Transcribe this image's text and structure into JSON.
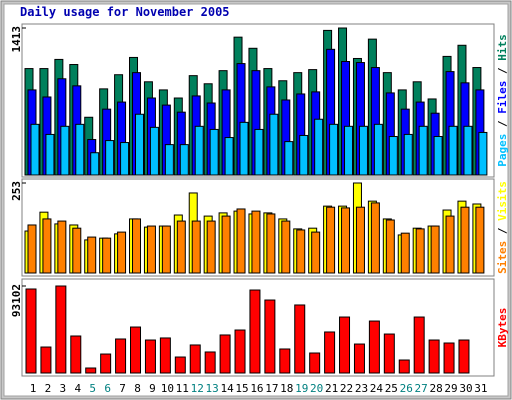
{
  "chart_data": [
    {
      "type": "bar",
      "title": "Daily usage for November 2005",
      "ylim": [
        0,
        1413
      ],
      "yticks": [
        1413
      ],
      "series": [
        {
          "name": "Hits",
          "color": "#00805c",
          "values": [
            1023,
            1023,
            1111,
            1062,
            555,
            828,
            964,
            1130,
            896,
            818,
            740,
            955,
            877,
            1003,
            1325,
            1218,
            1023,
            906,
            984,
            1013,
            1390,
            1413,
            1120,
            1306,
            984,
            818,
            896,
            731,
            1140,
            1247,
            1033
          ]
        },
        {
          "name": "Files",
          "color": "#0000ff",
          "values": [
            818,
            750,
            925,
            857,
            341,
            633,
            701,
            984,
            740,
            672,
            604,
            760,
            692,
            818,
            1071,
            1003,
            847,
            721,
            779,
            799,
            1208,
            1091,
            1081,
            1033,
            789,
            633,
            701,
            594,
            994,
            886,
            818
          ]
        },
        {
          "name": "Pages",
          "color": "#00c0ff",
          "values": [
            487,
            390,
            468,
            487,
            214,
            331,
            312,
            584,
            458,
            292,
            292,
            468,
            438,
            360,
            506,
            438,
            584,
            321,
            380,
            536,
            487,
            468,
            468,
            487,
            370,
            390,
            468,
            370,
            468,
            468,
            409
          ]
        }
      ]
    },
    {
      "type": "bar",
      "ylim": [
        0,
        253
      ],
      "yticks": [
        253
      ],
      "series": [
        {
          "name": "Visits",
          "color": "#ffff00",
          "values": [
            118,
            171,
            138,
            135,
            93,
            98,
            110,
            152,
            129,
            132,
            163,
            225,
            160,
            169,
            174,
            166,
            169,
            152,
            124,
            126,
            188,
            188,
            253,
            202,
            152,
            107,
            126,
            132,
            177,
            202,
            194
          ]
        },
        {
          "name": "Sites",
          "color": "#ff8000",
          "values": [
            135,
            152,
            146,
            126,
            101,
            98,
            115,
            152,
            132,
            132,
            146,
            146,
            146,
            160,
            180,
            174,
            166,
            146,
            121,
            115,
            185,
            183,
            185,
            197,
            149,
            112,
            124,
            132,
            160,
            185,
            185
          ]
        }
      ]
    },
    {
      "type": "bar",
      "ylim": [
        0,
        93102
      ],
      "yticks": [
        93102
      ],
      "categories": [
        "1",
        "2",
        "3",
        "4",
        "5",
        "6",
        "7",
        "8",
        "9",
        "10",
        "11",
        "12",
        "13",
        "14",
        "15",
        "16",
        "17",
        "18",
        "19",
        "20",
        "21",
        "22",
        "23",
        "24",
        "25",
        "26",
        "27",
        "28",
        "29",
        "30",
        "31"
      ],
      "category_colors": [
        "#000000",
        "#000000",
        "#000000",
        "#000000",
        "#008080",
        "#008080",
        "#000000",
        "#000000",
        "#000000",
        "#000000",
        "#000000",
        "#008080",
        "#008080",
        "#000000",
        "#000000",
        "#000000",
        "#000000",
        "#000000",
        "#008080",
        "#008080",
        "#000000",
        "#000000",
        "#000000",
        "#000000",
        "#000000",
        "#008080",
        "#008080",
        "#000000",
        "#000000",
        "#000000",
        "#000000"
      ],
      "series": [
        {
          "name": "KBytes",
          "color": "#ff0000",
          "values": [
            89900,
            27800,
            93102,
            39600,
            5350,
            20300,
            36400,
            49200,
            35300,
            37500,
            17100,
            30000,
            22500,
            40700,
            46000,
            88800,
            78100,
            25700,
            72800,
            21400,
            43900,
            59900,
            31000,
            55600,
            41700,
            13900,
            59900,
            35300,
            32100,
            35300,
            0
          ]
        }
      ]
    }
  ]
}
